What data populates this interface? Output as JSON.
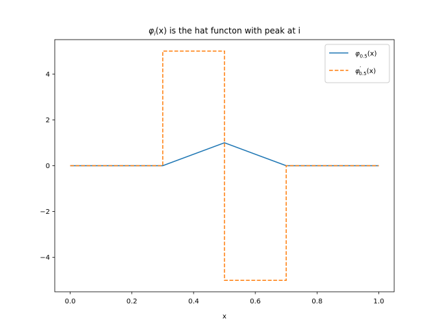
{
  "chart_data": {
    "type": "line",
    "title": {
      "phi": "φ",
      "sub": "i",
      "arg": "(x)",
      "rest": " is the hat functon with peak at i"
    },
    "xlabel": "x",
    "ylabel": "",
    "xlim": [
      -0.05,
      1.05
    ],
    "ylim": [
      -5.5,
      5.5
    ],
    "xticks": [
      0.0,
      0.2,
      0.4,
      0.6,
      0.8,
      1.0
    ],
    "xtick_labels": [
      "0.0",
      "0.2",
      "0.4",
      "0.6",
      "0.8",
      "1.0"
    ],
    "yticks": [
      -4,
      -2,
      0,
      2,
      4
    ],
    "ytick_labels": [
      "−4",
      "−2",
      "0",
      "2",
      "4"
    ],
    "grid": false,
    "legend_position": "top-right",
    "series": [
      {
        "legend": {
          "phi": "φ",
          "prime": "",
          "sub": "0.5",
          "arg": "(x)"
        },
        "color": "#1f77b4",
        "style": "solid",
        "x": [
          0.0,
          0.3,
          0.5,
          0.7,
          1.0
        ],
        "y": [
          0,
          0,
          1,
          0,
          0
        ]
      },
      {
        "legend": {
          "phi": "φ",
          "prime": "′",
          "sub": "0.5",
          "arg": "(x)"
        },
        "color": "#ff7f0e",
        "style": "dashed",
        "x": [
          0.0,
          0.3,
          0.3,
          0.5,
          0.5,
          0.7,
          0.7,
          1.0
        ],
        "y": [
          0,
          0,
          5,
          5,
          -5,
          -5,
          0,
          0
        ]
      }
    ]
  }
}
